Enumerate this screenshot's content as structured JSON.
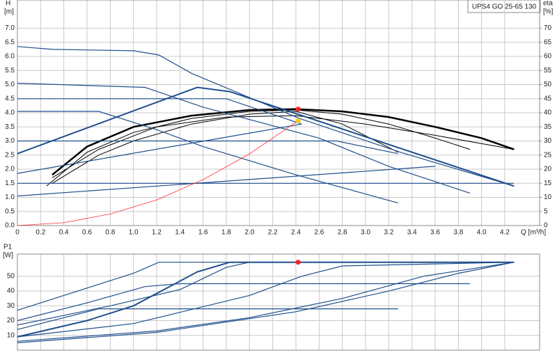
{
  "model_label": "UPS4 GO 25-65 130",
  "chart_data": [
    {
      "type": "line",
      "ylabel": "H",
      "yunit": "[m]",
      "y2label": "eta",
      "y2unit": "[%]",
      "xlabel": "Q [m³/h]",
      "xlim": [
        0,
        4.5
      ],
      "ylim": [
        0,
        8
      ],
      "y2lim": [
        0,
        80
      ],
      "grid": true,
      "xticks": [
        {
          "value": 0,
          "label": "0"
        },
        0.2,
        0.4,
        0.6,
        0.8,
        {
          "value": 1,
          "label": "1.0"
        },
        1.2,
        1.4,
        1.6,
        1.8,
        {
          "value": 2,
          "label": "2.0"
        },
        2.2,
        2.4,
        2.6,
        2.8,
        {
          "value": 3,
          "label": "3.0"
        },
        3.2,
        3.4,
        3.6,
        3.8,
        {
          "value": 4,
          "label": "4.0"
        },
        4.2
      ],
      "yticks": [
        {
          "value": 0,
          "label": "0.0"
        },
        0.5,
        {
          "value": 1,
          "label": "1.0"
        },
        1.5,
        {
          "value": 2,
          "label": "2.0"
        },
        2.5,
        {
          "value": 3,
          "label": "3.0"
        },
        3.5,
        {
          "value": 4,
          "label": "4.0"
        },
        4.5,
        {
          "value": 5,
          "label": "5.0"
        },
        5.5,
        {
          "value": 6,
          "label": "6.0"
        },
        6.5,
        {
          "value": 7,
          "label": "7.0"
        }
      ],
      "y2ticks": [
        0,
        5,
        10,
        15,
        20,
        25,
        30,
        35,
        40,
        45,
        50,
        55,
        60,
        65,
        70
      ],
      "series": [
        {
          "color": "#000000",
          "width": 2.5,
          "x": [
            0.3,
            0.6,
            1.0,
            1.5,
            2.0,
            2.4,
            2.8,
            3.2,
            3.6,
            4.0,
            4.28
          ],
          "values": [
            1.8,
            2.8,
            3.5,
            3.9,
            4.1,
            4.13,
            4.05,
            3.85,
            3.5,
            3.1,
            2.7
          ]
        },
        {
          "color": "#000000",
          "width": 1,
          "x": [
            0.25,
            0.6,
            1.0,
            1.5,
            2.0,
            2.4,
            2.8,
            3.2,
            3.6,
            3.9
          ],
          "values": [
            1.4,
            2.6,
            3.3,
            3.8,
            4.05,
            4.1,
            3.95,
            3.6,
            3.1,
            2.7
          ]
        },
        {
          "color": "#000000",
          "width": 1,
          "x": [
            0.3,
            0.7,
            1.0,
            1.5,
            2.0,
            2.4,
            2.8,
            3.28
          ],
          "values": [
            1.5,
            2.5,
            3.0,
            3.6,
            3.95,
            4.05,
            3.6,
            2.6
          ]
        },
        {
          "color": "#000000",
          "width": 1,
          "x": [
            0.3,
            0.7,
            1.2,
            1.8,
            2.4,
            3.0,
            3.6,
            4.28
          ],
          "values": [
            1.7,
            2.7,
            3.5,
            3.85,
            3.9,
            3.6,
            3.2,
            2.7
          ]
        },
        {
          "color": "#1f4e8c",
          "width": 1.2,
          "x": [
            0,
            0.3,
            1.0,
            1.22,
            1.5,
            2.43,
            3.3,
            4.28
          ],
          "values": [
            6.35,
            6.25,
            6.2,
            6.05,
            5.4,
            3.8,
            2.6,
            1.4
          ]
        },
        {
          "color": "#1f4e8c",
          "width": 1.2,
          "x": [
            0,
            1.1,
            1.6,
            2.6,
            3.2,
            3.9
          ],
          "values": [
            5.05,
            4.9,
            4.2,
            3.1,
            2.1,
            1.15
          ]
        },
        {
          "color": "#1f4e8c",
          "width": 1.2,
          "x": [
            0,
            0.7,
            1.2,
            1.6,
            2.4,
            3.28
          ],
          "values": [
            4.05,
            4.05,
            3.4,
            2.8,
            1.8,
            0.8
          ]
        },
        {
          "color": "#1f4e8c",
          "width": 1.2,
          "x": [
            0,
            1.8,
            2.45
          ],
          "values": [
            4.5,
            4.5,
            3.6
          ]
        },
        {
          "color": "#1f4e8c",
          "width": 1.2,
          "x": [
            0,
            2.75,
            3.28
          ],
          "values": [
            3.0,
            3.0,
            2.55
          ]
        },
        {
          "color": "#1f4e8c",
          "width": 1.2,
          "x": [
            0,
            4.28
          ],
          "values": [
            1.5,
            1.5
          ]
        },
        {
          "color": "#1f4e8c",
          "width": 2,
          "x": [
            0,
            1.55,
            1.83,
            4.28
          ],
          "values": [
            2.55,
            4.9,
            4.75,
            1.4
          ]
        },
        {
          "color": "#1f4e8c",
          "width": 1.2,
          "x": [
            0,
            2.45
          ],
          "values": [
            1.85,
            3.6
          ]
        },
        {
          "color": "#1f4e8c",
          "width": 1.2,
          "x": [
            0,
            3.6
          ],
          "values": [
            1.05,
            2.1
          ]
        },
        {
          "color": "#ff3030",
          "width": 0.8,
          "x": [
            0,
            0.4,
            0.8,
            1.2,
            1.6,
            2.0,
            2.43
          ],
          "values": [
            0,
            0.1,
            0.41,
            0.91,
            1.63,
            2.54,
            3.75
          ]
        }
      ],
      "points": [
        {
          "x": 2.42,
          "y": 4.13,
          "color": "#ff2020"
        },
        {
          "x": 2.42,
          "y": 3.72,
          "color": "#ffd21f"
        }
      ]
    },
    {
      "type": "line",
      "ylabel": "P1",
      "yunit": "[W]",
      "xlim": [
        0,
        4.5
      ],
      "ylim": [
        0,
        65
      ],
      "grid": true,
      "xticks": [
        {
          "value": 0,
          "label": "0"
        },
        0.2,
        0.4,
        0.6,
        0.8,
        {
          "value": 1,
          "label": "1.0"
        },
        1.2,
        1.4,
        1.6,
        1.8,
        {
          "value": 2,
          "label": "2.0"
        },
        2.2,
        2.4,
        2.6,
        2.8,
        {
          "value": 3,
          "label": "3.0"
        },
        3.2,
        3.4,
        3.6,
        3.8,
        {
          "value": 4,
          "label": "4.0"
        },
        4.2
      ],
      "yticks": [
        10,
        20,
        30,
        40,
        50
      ],
      "series": [
        {
          "color": "#1f4e8c",
          "width": 1.2,
          "x": [
            0,
            0.6,
            1.0,
            1.22,
            4.28
          ],
          "values": [
            27,
            42,
            52,
            59.5,
            59.5
          ]
        },
        {
          "color": "#1f4e8c",
          "width": 1.2,
          "x": [
            0,
            0.6,
            1.1,
            1.4,
            3.9
          ],
          "values": [
            20,
            32,
            43,
            45,
            45
          ]
        },
        {
          "color": "#1f4e8c",
          "width": 1.2,
          "x": [
            0,
            0.8,
            1.4,
            1.8,
            2.0,
            2.5,
            4.28
          ],
          "values": [
            17,
            30,
            41,
            56,
            59.5,
            59.5,
            59.5
          ]
        },
        {
          "color": "#1f4e8c",
          "width": 2,
          "x": [
            0,
            0.6,
            1.0,
            1.55,
            1.83,
            4.28
          ],
          "values": [
            9,
            20,
            30,
            53,
            59.5,
            59.5
          ]
        },
        {
          "color": "#1f4e8c",
          "width": 1.2,
          "x": [
            0,
            0.7,
            3.28
          ],
          "values": [
            14,
            28,
            28
          ]
        },
        {
          "color": "#1f4e8c",
          "width": 1.2,
          "x": [
            0,
            1.0,
            2.0,
            2.45,
            2.8,
            4.28
          ],
          "values": [
            9,
            18,
            37,
            50,
            57,
            59.5
          ]
        },
        {
          "color": "#1f4e8c",
          "width": 1.2,
          "x": [
            0,
            1.2,
            2.0,
            2.8,
            3.5,
            4.28
          ],
          "values": [
            6,
            13,
            22,
            35,
            50,
            59.5
          ]
        },
        {
          "color": "#1f4e8c",
          "width": 1.2,
          "x": [
            0,
            1.2,
            2.4,
            3.2,
            3.8,
            4.28
          ],
          "values": [
            5,
            12,
            26,
            40,
            52,
            59.5
          ]
        }
      ],
      "points": [
        {
          "x": 2.42,
          "y": 59.5,
          "color": "#ff2020"
        }
      ]
    }
  ]
}
